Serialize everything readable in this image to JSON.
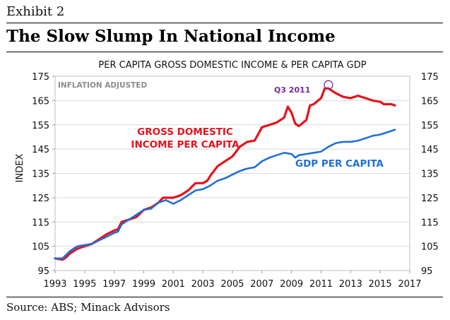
{
  "header": {
    "exhibit": "Exhibit 2",
    "title": "The Slow Slump In National Income"
  },
  "footer": {
    "source": "Source: ABS; Minack Advisors"
  },
  "colors": {
    "gdi": "#e8101a",
    "gdp": "#1f6fd9",
    "annotation": "#7a2a9c",
    "note": "#8c8c8c",
    "grid": "#d9d9d9"
  },
  "chart_data": {
    "type": "line",
    "title": "PER CAPITA GROSS DOMESTIC INCOME & PER CAPITA GDP",
    "ylabel": "INDEX",
    "xlabel": "",
    "note": "INFLATION ADJUSTED",
    "xlim": [
      1993,
      2017
    ],
    "ylim": [
      95,
      175
    ],
    "xticks": [
      "1993",
      "1995",
      "1997",
      "1999",
      "2001",
      "2003",
      "2005",
      "2007",
      "2009",
      "2011",
      "2013",
      "2015",
      "2017"
    ],
    "yticks": [
      "95",
      "105",
      "115",
      "125",
      "135",
      "145",
      "155",
      "165",
      "175"
    ],
    "grid": true,
    "labels": {
      "gdi": [
        "GROSS DOMESTIC",
        "INCOME PER CAPITA"
      ],
      "gdp": "GDP PER CAPITA"
    },
    "annotation": {
      "text": "Q3 2011",
      "x": 2011.5,
      "y": 170
    },
    "series": [
      {
        "name": "GROSS DOMESTIC INCOME PER CAPITA",
        "color": "#e8101a",
        "points": [
          [
            1993.0,
            100
          ],
          [
            1993.5,
            99.5
          ],
          [
            1993.75,
            100.5
          ],
          [
            1994.0,
            102
          ],
          [
            1994.5,
            104
          ],
          [
            1995.0,
            105
          ],
          [
            1995.5,
            106
          ],
          [
            1996.0,
            108
          ],
          [
            1996.5,
            110
          ],
          [
            1997.0,
            111.5
          ],
          [
            1997.25,
            112
          ],
          [
            1997.5,
            115
          ],
          [
            1997.75,
            115.5
          ],
          [
            1998.0,
            116
          ],
          [
            1998.5,
            117
          ],
          [
            1999.0,
            120
          ],
          [
            1999.5,
            121
          ],
          [
            2000.0,
            123
          ],
          [
            2000.3,
            125
          ],
          [
            2000.6,
            125
          ],
          [
            2001.0,
            125
          ],
          [
            2001.5,
            126
          ],
          [
            2002.0,
            128
          ],
          [
            2002.5,
            131
          ],
          [
            2003.0,
            131
          ],
          [
            2003.3,
            132
          ],
          [
            2003.5,
            134
          ],
          [
            2004.0,
            138
          ],
          [
            2004.5,
            140
          ],
          [
            2005.0,
            142
          ],
          [
            2005.5,
            146
          ],
          [
            2006.0,
            148
          ],
          [
            2006.5,
            148.5
          ],
          [
            2007.0,
            154
          ],
          [
            2007.5,
            155
          ],
          [
            2008.0,
            156
          ],
          [
            2008.5,
            158
          ],
          [
            2008.75,
            162.5
          ],
          [
            2009.0,
            160
          ],
          [
            2009.25,
            155.5
          ],
          [
            2009.5,
            154.5
          ],
          [
            2010.0,
            157
          ],
          [
            2010.25,
            163
          ],
          [
            2010.5,
            163.5
          ],
          [
            2011.0,
            166
          ],
          [
            2011.25,
            170
          ],
          [
            2011.5,
            170
          ],
          [
            2011.75,
            169
          ],
          [
            2012.0,
            168
          ],
          [
            2012.5,
            166.5
          ],
          [
            2013.0,
            166
          ],
          [
            2013.5,
            167
          ],
          [
            2014.0,
            166
          ],
          [
            2014.5,
            165
          ],
          [
            2015.0,
            164.5
          ],
          [
            2015.25,
            163.5
          ],
          [
            2015.75,
            163.5
          ],
          [
            2016.0,
            163
          ]
        ]
      },
      {
        "name": "GDP PER CAPITA",
        "color": "#1f6fd9",
        "points": [
          [
            1993.0,
            100
          ],
          [
            1993.5,
            100
          ],
          [
            1994.0,
            103
          ],
          [
            1994.5,
            105
          ],
          [
            1995.0,
            105.5
          ],
          [
            1995.5,
            106
          ],
          [
            1996.0,
            107.5
          ],
          [
            1996.5,
            109
          ],
          [
            1997.0,
            110.5
          ],
          [
            1997.25,
            111
          ],
          [
            1997.5,
            114
          ],
          [
            1998.0,
            116
          ],
          [
            1998.5,
            118
          ],
          [
            1999.0,
            120
          ],
          [
            1999.5,
            120.5
          ],
          [
            2000.0,
            123
          ],
          [
            2000.5,
            124
          ],
          [
            2001.0,
            122.5
          ],
          [
            2001.5,
            124
          ],
          [
            2002.0,
            126
          ],
          [
            2002.5,
            128
          ],
          [
            2003.0,
            128.5
          ],
          [
            2003.5,
            130
          ],
          [
            2004.0,
            132
          ],
          [
            2004.5,
            133
          ],
          [
            2005.0,
            134.5
          ],
          [
            2005.5,
            136
          ],
          [
            2006.0,
            137
          ],
          [
            2006.5,
            137.5
          ],
          [
            2007.0,
            140
          ],
          [
            2007.5,
            141.5
          ],
          [
            2008.0,
            142.5
          ],
          [
            2008.5,
            143.5
          ],
          [
            2009.0,
            143
          ],
          [
            2009.25,
            141.5
          ],
          [
            2009.5,
            142.5
          ],
          [
            2010.0,
            143
          ],
          [
            2010.5,
            143.5
          ],
          [
            2011.0,
            144
          ],
          [
            2011.5,
            146
          ],
          [
            2012.0,
            147.5
          ],
          [
            2012.5,
            148
          ],
          [
            2013.0,
            148
          ],
          [
            2013.5,
            148.5
          ],
          [
            2014.0,
            149.5
          ],
          [
            2014.5,
            150.5
          ],
          [
            2015.0,
            151
          ],
          [
            2015.5,
            152
          ],
          [
            2016.0,
            153
          ]
        ]
      }
    ]
  }
}
